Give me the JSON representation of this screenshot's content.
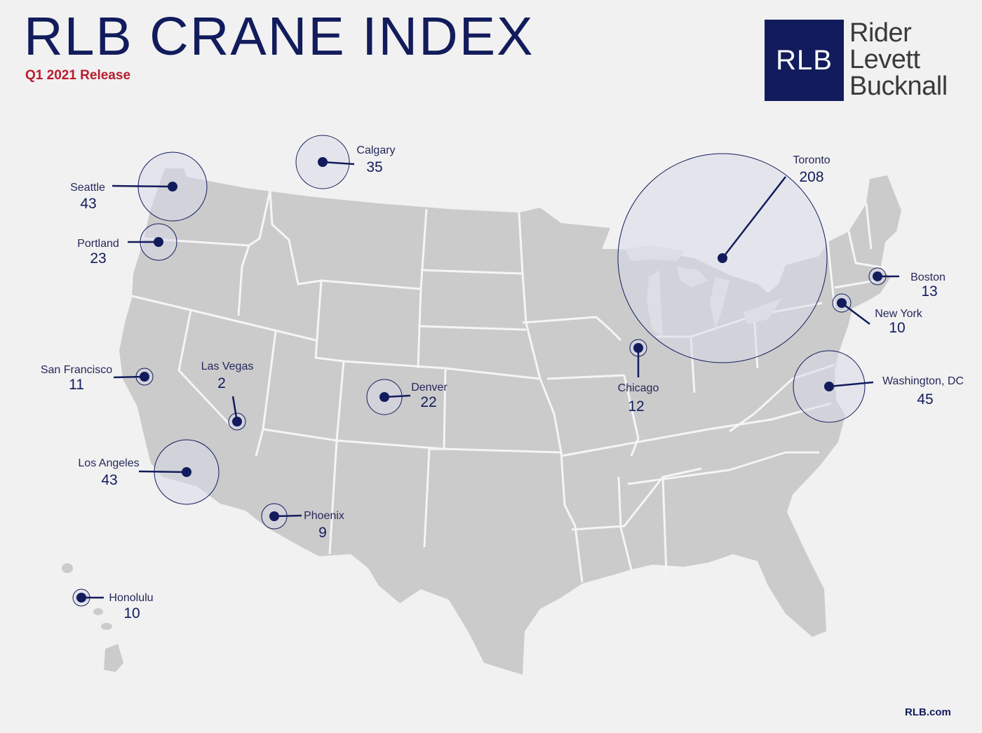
{
  "title": "RLB CRANE INDEX",
  "subtitle": "Q1 2021 Release",
  "logo": {
    "abbr": "RLB",
    "line1": "Rider",
    "line2": "Levett",
    "line3": "Bucknall"
  },
  "footer": "RLB.com",
  "colors": {
    "navy": "#121c5c",
    "accent_red": "#b81c2e",
    "land": "#cbcbcb",
    "state_borders": "#f5f5f5",
    "bubble_fill": "#d8dbe8"
  },
  "cities": [
    {
      "name": "Seattle",
      "count": "43"
    },
    {
      "name": "Calgary",
      "count": "35"
    },
    {
      "name": "Portland",
      "count": "23"
    },
    {
      "name": "Toronto",
      "count": "208"
    },
    {
      "name": "Boston",
      "count": "13"
    },
    {
      "name": "New York",
      "count": "10"
    },
    {
      "name": "San Francisco",
      "count": "11"
    },
    {
      "name": "Las Vegas",
      "count": "2"
    },
    {
      "name": "Denver",
      "count": "22"
    },
    {
      "name": "Chicago",
      "count": "12"
    },
    {
      "name": "Washington, DC",
      "count": "45"
    },
    {
      "name": "Los Angeles",
      "count": "43"
    },
    {
      "name": "Phoenix",
      "count": "9"
    },
    {
      "name": "Honolulu",
      "count": "10"
    }
  ]
}
